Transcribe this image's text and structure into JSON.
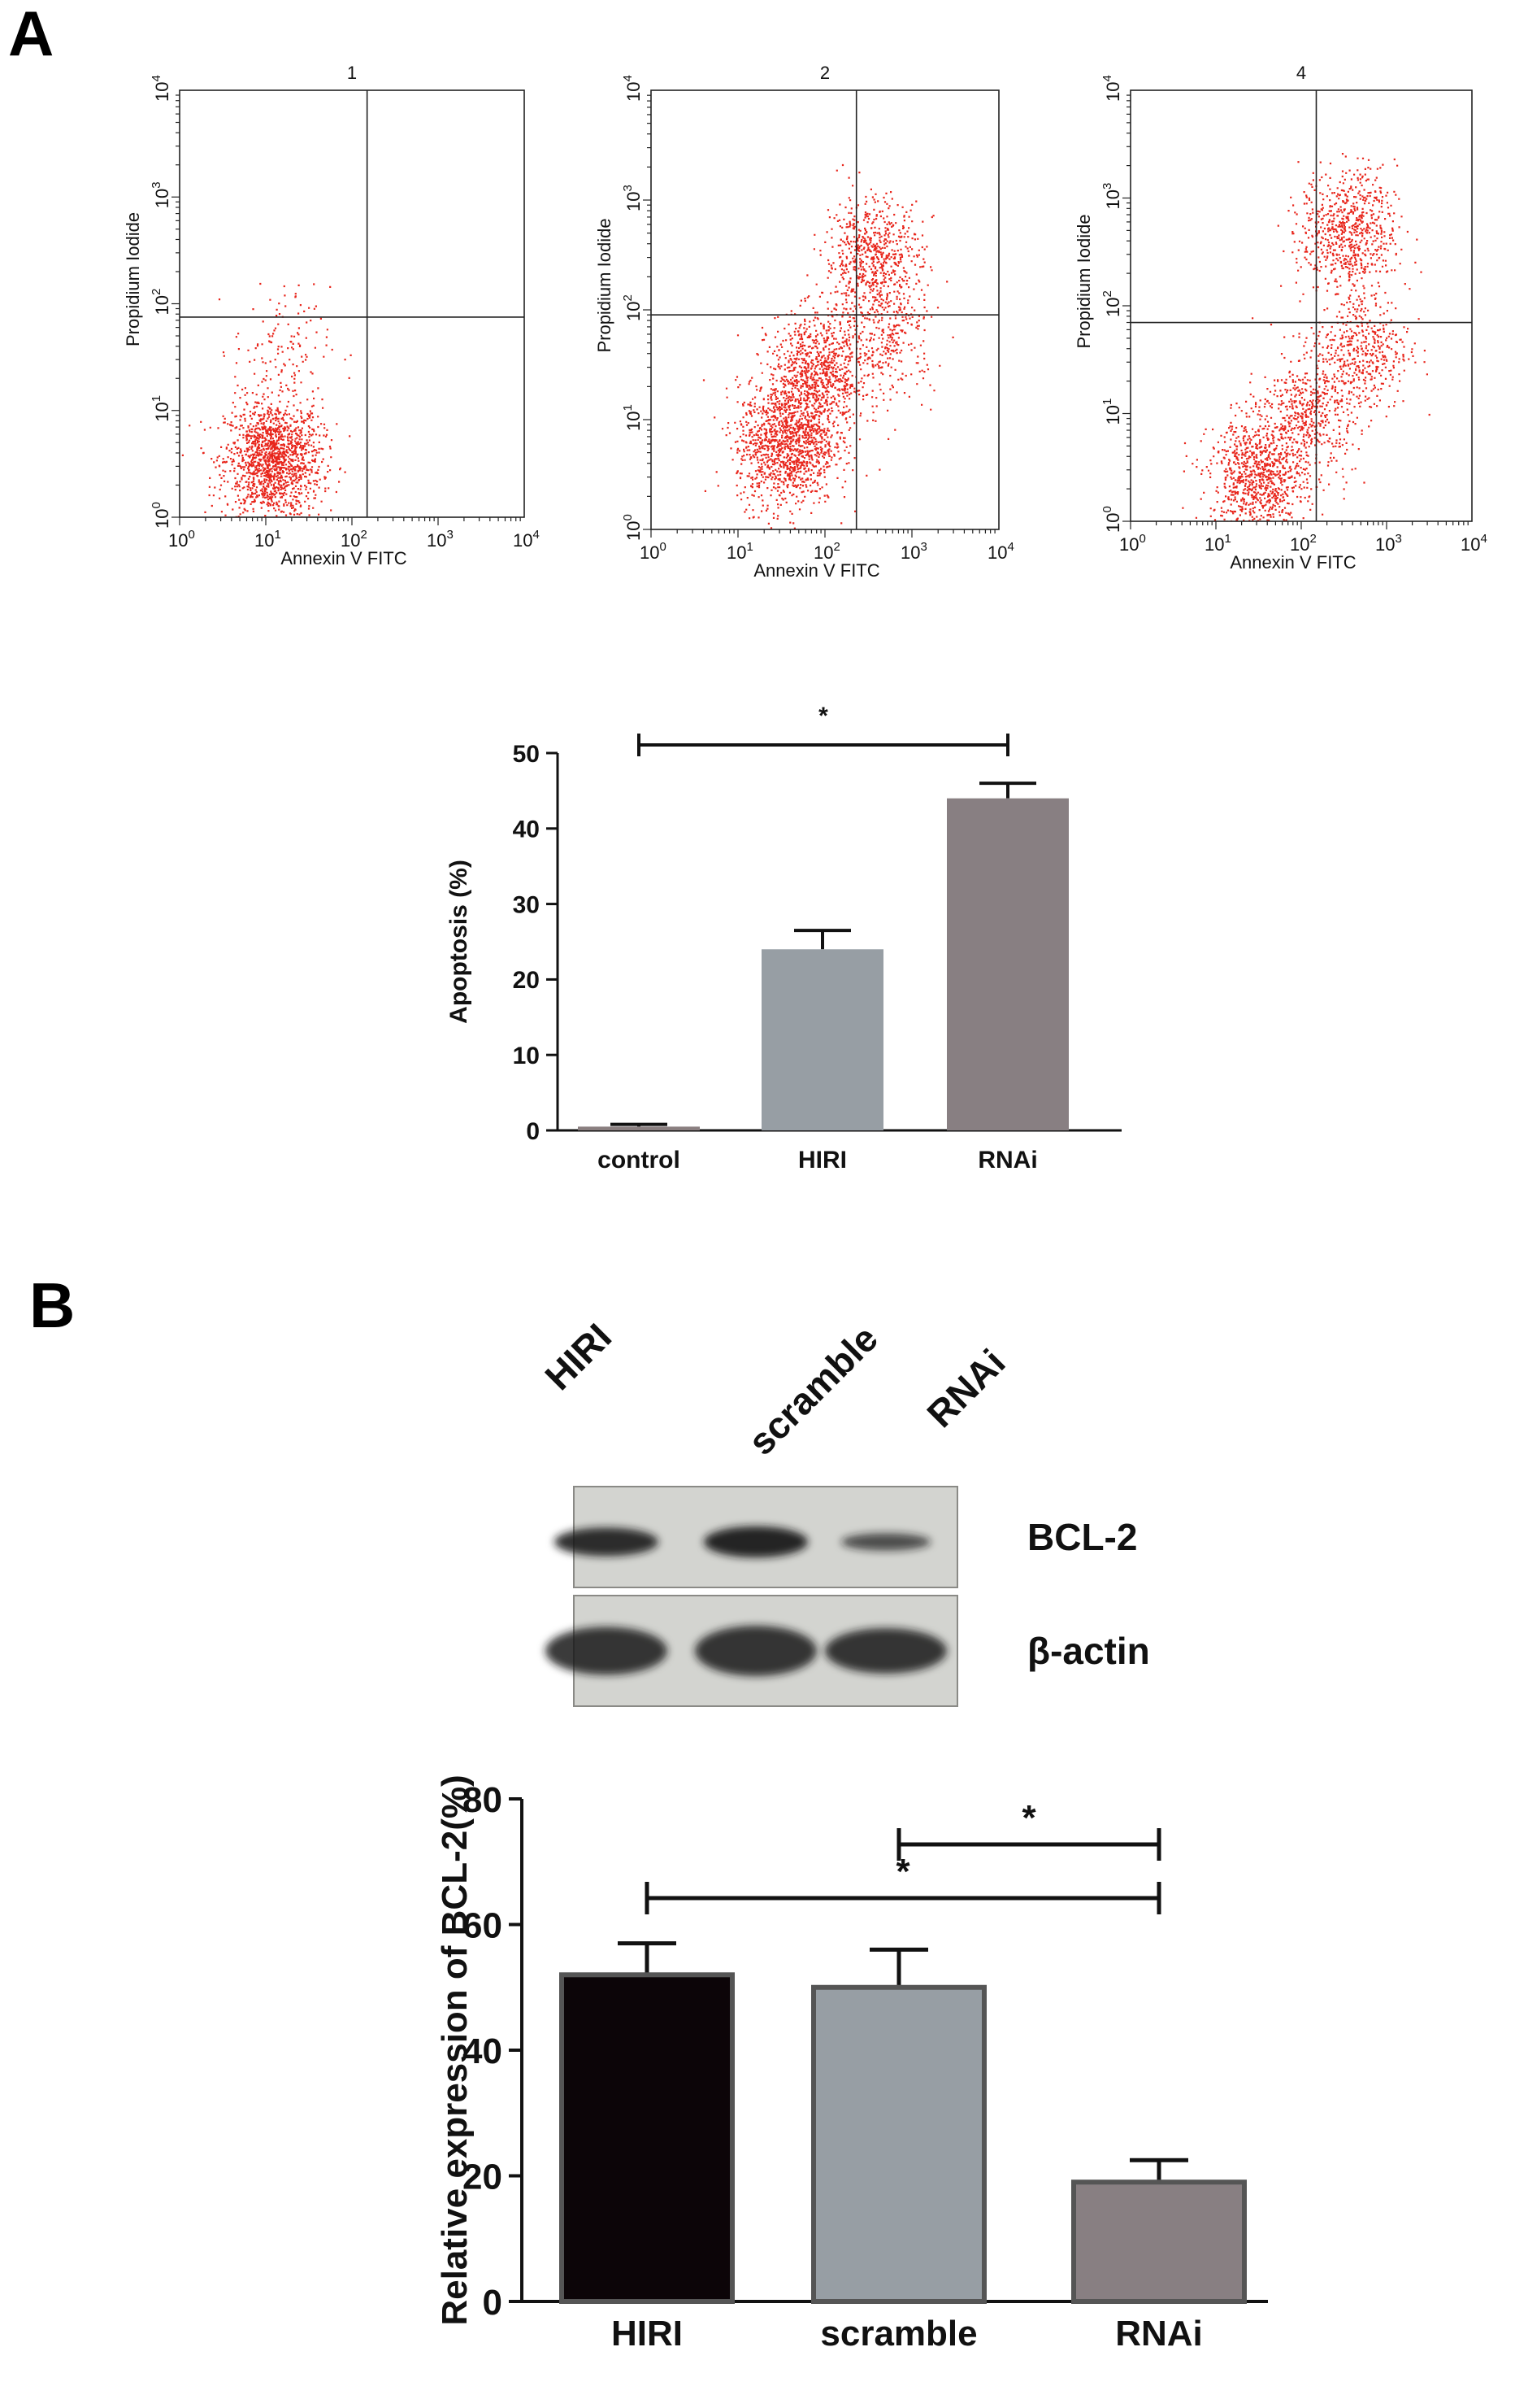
{
  "panel_labels": {
    "a": "A",
    "b": "B"
  },
  "chart_data": [
    {
      "type": "scatter",
      "panel": "A",
      "title": "1",
      "xlabel": "Annexin V FITC",
      "ylabel": "Propidium Iodide",
      "scale": "log",
      "xlim": [
        1,
        10000
      ],
      "ylim": [
        1,
        10000
      ],
      "tick_labels": [
        "10^0",
        "10^1",
        "10^2",
        "10^3",
        "10^4"
      ],
      "quadrant_gate": {
        "x": 150,
        "y": 75
      },
      "clusters": [
        {
          "cx": 12,
          "cy": 3.5,
          "n": 1500
        },
        {
          "cx": 15,
          "cy": 40,
          "n": 120
        }
      ],
      "point_color": "#e8261c"
    },
    {
      "type": "scatter",
      "panel": "A",
      "title": "2",
      "xlabel": "Annexin V FITC",
      "ylabel": "Propidium Iodide",
      "scale": "log",
      "xlim": [
        1,
        10000
      ],
      "ylim": [
        1,
        10000
      ],
      "tick_labels": [
        "10^0",
        "10^1",
        "10^2",
        "10^3",
        "10^4"
      ],
      "quadrant_gate": {
        "x": 230,
        "y": 90
      },
      "clusters": [
        {
          "cx": 35,
          "cy": 6,
          "n": 1200
        },
        {
          "cx": 80,
          "cy": 25,
          "n": 900
        },
        {
          "cx": 350,
          "cy": 300,
          "n": 650
        },
        {
          "cx": 500,
          "cy": 60,
          "n": 300
        }
      ],
      "point_color": "#e8261c"
    },
    {
      "type": "scatter",
      "panel": "A",
      "title": "4",
      "xlabel": "Annexin V FITC",
      "ylabel": "Propidium Iodide",
      "scale": "log",
      "xlim": [
        1,
        10000
      ],
      "ylim": [
        1,
        10000
      ],
      "tick_labels": [
        "10^0",
        "10^1",
        "10^2",
        "10^3",
        "10^4"
      ],
      "quadrant_gate": {
        "x": 150,
        "y": 70
      },
      "clusters": [
        {
          "cx": 30,
          "cy": 2.5,
          "n": 900
        },
        {
          "cx": 120,
          "cy": 10,
          "n": 500
        },
        {
          "cx": 350,
          "cy": 500,
          "n": 700
        },
        {
          "cx": 500,
          "cy": 40,
          "n": 450
        }
      ],
      "point_color": "#e8261c"
    },
    {
      "type": "bar",
      "panel": "A",
      "categories": [
        "control",
        "HIRI",
        "RNAi"
      ],
      "values": [
        0.5,
        24,
        44
      ],
      "errors": [
        0.3,
        2.5,
        2.0
      ],
      "colors": [
        "#8a7f80",
        "#979ea4",
        "#887f82"
      ],
      "ylabel": "Apoptosis (%)",
      "ylim": [
        0,
        50
      ],
      "yticks": [
        0,
        10,
        20,
        30,
        40,
        50
      ],
      "significance": [
        {
          "from": 0,
          "to": 2,
          "label": "*"
        }
      ]
    },
    {
      "type": "bar",
      "panel": "B",
      "categories": [
        "HIRI",
        "scramble",
        "RNAi"
      ],
      "values": [
        52,
        50,
        19
      ],
      "errors": [
        5,
        6,
        3.5
      ],
      "colors": [
        "#0c0508",
        "#979ea4",
        "#887f82"
      ],
      "ylabel": "Relative expression of BCL-2(%)",
      "ylim": [
        0,
        80
      ],
      "yticks": [
        0,
        20,
        40,
        60,
        80
      ],
      "significance": [
        {
          "from": 1,
          "to": 2,
          "label": "*"
        },
        {
          "from": 0,
          "to": 2,
          "label": "*"
        }
      ]
    }
  ],
  "western_blot": {
    "lanes": [
      "HIRI",
      "scramble",
      "RNAi"
    ],
    "rows": [
      {
        "label": "BCL-2",
        "intensities": [
          0.85,
          0.95,
          0.45
        ]
      },
      {
        "label": "β-actin",
        "intensities": [
          0.95,
          1.0,
          0.9
        ]
      }
    ]
  }
}
